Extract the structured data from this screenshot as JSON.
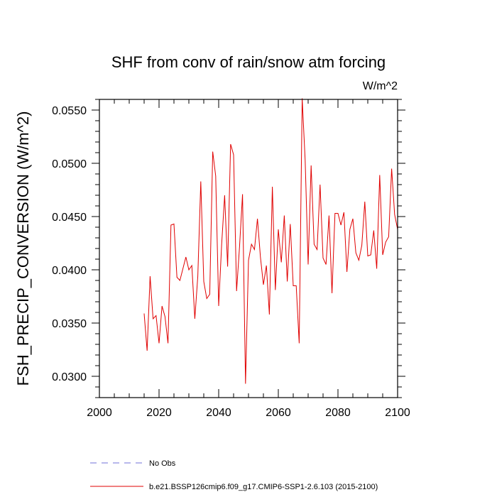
{
  "chart_data": {
    "type": "line",
    "title": "SHF from conv of rain/snow atm forcing",
    "units": "W/m^2",
    "xlabel": "",
    "ylabel": "FSH_PRECIP_CONVERSION  (W/m^2)",
    "xlim": [
      2000,
      2100
    ],
    "ylim": [
      0.028,
      0.056
    ],
    "xticks": [
      2000,
      2020,
      2040,
      2060,
      2080,
      2100
    ],
    "xtick_labels": [
      "2000",
      "2020",
      "2040",
      "2060",
      "2080",
      "2100"
    ],
    "yticks": [
      0.03,
      0.035,
      0.04,
      0.045,
      0.05,
      0.055
    ],
    "ytick_labels": [
      "0.0300",
      "0.0350",
      "0.0400",
      "0.0450",
      "0.0500",
      "0.0550"
    ],
    "legend_position": "bottom",
    "series": [
      {
        "name": "No Obs",
        "color": "#7070d8",
        "dashed": true,
        "x": [],
        "values": []
      },
      {
        "name": "b.e21.BSSP126cmip6.f09_g17.CMIP6-SSP1-2.6.103 (2015-2100)",
        "color": "#e00000",
        "dashed": false,
        "x": [
          2015,
          2016,
          2017,
          2018,
          2019,
          2020,
          2021,
          2022,
          2023,
          2024,
          2025,
          2026,
          2027,
          2028,
          2029,
          2030,
          2031,
          2032,
          2033,
          2034,
          2035,
          2036,
          2037,
          2038,
          2039,
          2040,
          2041,
          2042,
          2043,
          2044,
          2045,
          2046,
          2047,
          2048,
          2049,
          2050,
          2051,
          2052,
          2053,
          2054,
          2055,
          2056,
          2057,
          2058,
          2059,
          2060,
          2061,
          2062,
          2063,
          2064,
          2065,
          2066,
          2067,
          2068,
          2069,
          2070,
          2071,
          2072,
          2073,
          2074,
          2075,
          2076,
          2077,
          2078,
          2079,
          2080,
          2081,
          2082,
          2083,
          2084,
          2085,
          2086,
          2087,
          2088,
          2089,
          2090,
          2091,
          2092,
          2093,
          2094,
          2095,
          2096,
          2097,
          2098,
          2099,
          2100
        ],
        "values": [
          0.0359,
          0.0324,
          0.0394,
          0.0354,
          0.0357,
          0.0331,
          0.0366,
          0.0356,
          0.0331,
          0.0442,
          0.0443,
          0.0393,
          0.039,
          0.0401,
          0.0412,
          0.04,
          0.0404,
          0.0354,
          0.0394,
          0.0483,
          0.0389,
          0.0373,
          0.0377,
          0.0511,
          0.0488,
          0.0366,
          0.0424,
          0.047,
          0.0403,
          0.0518,
          0.0508,
          0.038,
          0.0422,
          0.0471,
          0.0293,
          0.0409,
          0.0424,
          0.0419,
          0.0448,
          0.0412,
          0.0386,
          0.0404,
          0.0358,
          0.0478,
          0.0381,
          0.0438,
          0.0407,
          0.0451,
          0.0389,
          0.0443,
          0.0385,
          0.0385,
          0.0331,
          0.0561,
          0.0503,
          0.0405,
          0.0498,
          0.0424,
          0.0419,
          0.048,
          0.0411,
          0.0405,
          0.0451,
          0.0378,
          0.0453,
          0.0453,
          0.0442,
          0.0454,
          0.0398,
          0.0438,
          0.0448,
          0.0416,
          0.0409,
          0.0423,
          0.0464,
          0.0413,
          0.0414,
          0.0437,
          0.0401,
          0.0489,
          0.0414,
          0.0426,
          0.0431,
          0.0495,
          0.0452,
          0.0438
        ]
      }
    ]
  }
}
